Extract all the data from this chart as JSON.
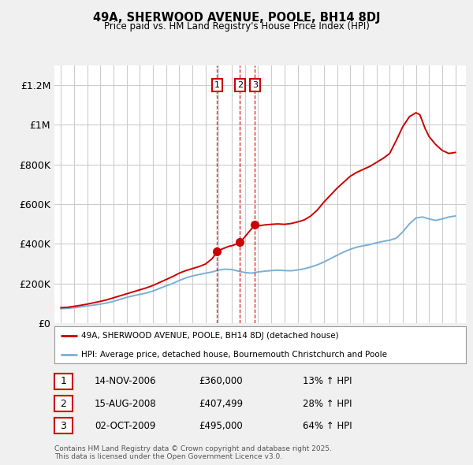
{
  "title": "49A, SHERWOOD AVENUE, POOLE, BH14 8DJ",
  "subtitle": "Price paid vs. HM Land Registry's House Price Index (HPI)",
  "ylabel_ticks": [
    "£0",
    "£200K",
    "£400K",
    "£600K",
    "£800K",
    "£1M",
    "£1.2M"
  ],
  "ytick_values": [
    0,
    200000,
    400000,
    600000,
    800000,
    1000000,
    1200000
  ],
  "ylim": [
    0,
    1300000
  ],
  "xlim_start": 1994.5,
  "xlim_end": 2025.8,
  "legend_line1": "49A, SHERWOOD AVENUE, POOLE, BH14 8DJ (detached house)",
  "legend_line2": "HPI: Average price, detached house, Bournemouth Christchurch and Poole",
  "transactions": [
    {
      "num": "1",
      "date": "14-NOV-2006",
      "price": "£360,000",
      "hpi": "13% ↑ HPI",
      "year": 2006.87,
      "price_val": 360000
    },
    {
      "num": "2",
      "date": "15-AUG-2008",
      "price": "£407,499",
      "hpi": "28% ↑ HPI",
      "year": 2008.62,
      "price_val": 407499
    },
    {
      "num": "3",
      "date": "02-OCT-2009",
      "price": "£495,000",
      "hpi": "64% ↑ HPI",
      "year": 2009.75,
      "price_val": 495000
    }
  ],
  "footer": "Contains HM Land Registry data © Crown copyright and database right 2025.\nThis data is licensed under the Open Government Licence v3.0.",
  "red_color": "#cc0000",
  "blue_color": "#7bafd4",
  "bg_color": "#f0f0f0",
  "plot_bg": "#ffffff",
  "grid_color": "#cccccc",
  "hpi_years": [
    1995.0,
    1995.5,
    1996.0,
    1996.5,
    1997.0,
    1997.5,
    1998.0,
    1998.5,
    1999.0,
    1999.5,
    2000.0,
    2000.5,
    2001.0,
    2001.5,
    2002.0,
    2002.5,
    2003.0,
    2003.5,
    2004.0,
    2004.5,
    2005.0,
    2005.5,
    2006.0,
    2006.5,
    2007.0,
    2007.5,
    2008.0,
    2008.5,
    2009.0,
    2009.5,
    2010.0,
    2010.5,
    2011.0,
    2011.5,
    2012.0,
    2012.5,
    2013.0,
    2013.5,
    2014.0,
    2014.5,
    2015.0,
    2015.5,
    2016.0,
    2016.5,
    2017.0,
    2017.5,
    2018.0,
    2018.5,
    2019.0,
    2019.5,
    2020.0,
    2020.5,
    2021.0,
    2021.5,
    2022.0,
    2022.5,
    2023.0,
    2023.5,
    2024.0,
    2024.5,
    2025.0
  ],
  "hpi_values": [
    73000,
    75000,
    78000,
    82000,
    87000,
    91000,
    96000,
    102000,
    110000,
    120000,
    130000,
    138000,
    145000,
    152000,
    162000,
    175000,
    188000,
    200000,
    215000,
    228000,
    238000,
    245000,
    252000,
    258000,
    268000,
    272000,
    270000,
    262000,
    255000,
    252000,
    258000,
    262000,
    265000,
    267000,
    265000,
    264000,
    268000,
    274000,
    283000,
    294000,
    308000,
    325000,
    342000,
    358000,
    372000,
    383000,
    390000,
    396000,
    405000,
    412000,
    418000,
    428000,
    460000,
    500000,
    530000,
    535000,
    525000,
    518000,
    525000,
    535000,
    540000
  ],
  "prop_years": [
    1995.0,
    1995.5,
    1996.0,
    1996.5,
    1997.0,
    1997.5,
    1998.0,
    1998.5,
    1999.0,
    1999.5,
    2000.0,
    2000.5,
    2001.0,
    2001.5,
    2002.0,
    2002.5,
    2003.0,
    2003.5,
    2004.0,
    2004.5,
    2005.0,
    2005.5,
    2006.0,
    2006.5,
    2006.87,
    2007.3,
    2007.8,
    2008.0,
    2008.4,
    2008.62,
    2008.8,
    2009.3,
    2009.75,
    2010.0,
    2010.5,
    2011.0,
    2011.5,
    2012.0,
    2012.5,
    2013.0,
    2013.5,
    2014.0,
    2014.5,
    2015.0,
    2015.5,
    2016.0,
    2016.5,
    2017.0,
    2017.5,
    2018.0,
    2018.5,
    2019.0,
    2019.5,
    2020.0,
    2020.5,
    2021.0,
    2021.5,
    2022.0,
    2022.3,
    2022.7,
    2023.0,
    2023.5,
    2024.0,
    2024.5,
    2025.0
  ],
  "prop_values": [
    78000,
    80000,
    85000,
    90000,
    96000,
    103000,
    110000,
    118000,
    128000,
    138000,
    148000,
    158000,
    168000,
    178000,
    190000,
    205000,
    220000,
    235000,
    252000,
    265000,
    275000,
    285000,
    298000,
    325000,
    360000,
    375000,
    388000,
    390000,
    400000,
    407499,
    420000,
    460000,
    495000,
    490000,
    495000,
    498000,
    500000,
    498000,
    502000,
    510000,
    520000,
    540000,
    570000,
    610000,
    645000,
    680000,
    710000,
    740000,
    760000,
    775000,
    790000,
    810000,
    830000,
    855000,
    920000,
    990000,
    1040000,
    1060000,
    1050000,
    980000,
    940000,
    900000,
    870000,
    855000,
    860000
  ]
}
